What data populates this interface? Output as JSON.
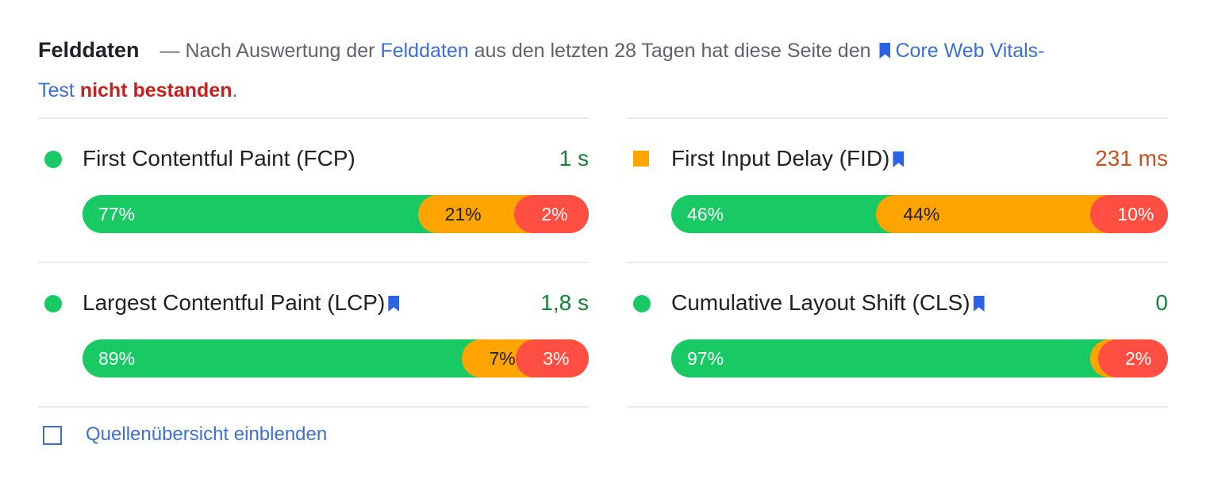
{
  "header": {
    "title": "Felddaten",
    "dash": "—",
    "t1": " Nach Auswertung der ",
    "link1": "Felddaten",
    "t2": " aus den letzten 28 Tagen hat diese Seite den ",
    "link2": "Core Web Vitals-Test",
    "status": "nicht bestanden",
    "end": "."
  },
  "colors": {
    "good": "#18c964",
    "average": "#ffa400",
    "poor": "#ff4e42",
    "link": "#3c6fcf",
    "fail": "#c5221f"
  },
  "metrics": [
    {
      "name": "First Contentful Paint (FCP)",
      "value": "1 s",
      "rating": "good",
      "core": false,
      "dist": [
        {
          "label": "77%",
          "v": 77
        },
        {
          "label": "21%",
          "v": 21
        },
        {
          "label": "2%",
          "v": 2
        }
      ]
    },
    {
      "name": "First Input Delay (FID)",
      "value": "231 ms",
      "rating": "average",
      "core": true,
      "dist": [
        {
          "label": "46%",
          "v": 46
        },
        {
          "label": "44%",
          "v": 44
        },
        {
          "label": "10%",
          "v": 10
        }
      ]
    },
    {
      "name": "Largest Contentful Paint (LCP)",
      "value": "1,8 s",
      "rating": "good",
      "core": true,
      "dist": [
        {
          "label": "89%",
          "v": 89
        },
        {
          "label": "7%",
          "v": 7
        },
        {
          "label": "3%",
          "v": 3
        }
      ]
    },
    {
      "name": "Cumulative Layout Shift (CLS)",
      "value": "0",
      "rating": "good",
      "core": true,
      "dist": [
        {
          "label": "97%",
          "v": 97
        },
        {
          "label": "",
          "v": 1
        },
        {
          "label": "2%",
          "v": 2
        }
      ]
    }
  ],
  "footer": {
    "checkbox_label": "Quellenübersicht einblenden",
    "checked": false
  }
}
